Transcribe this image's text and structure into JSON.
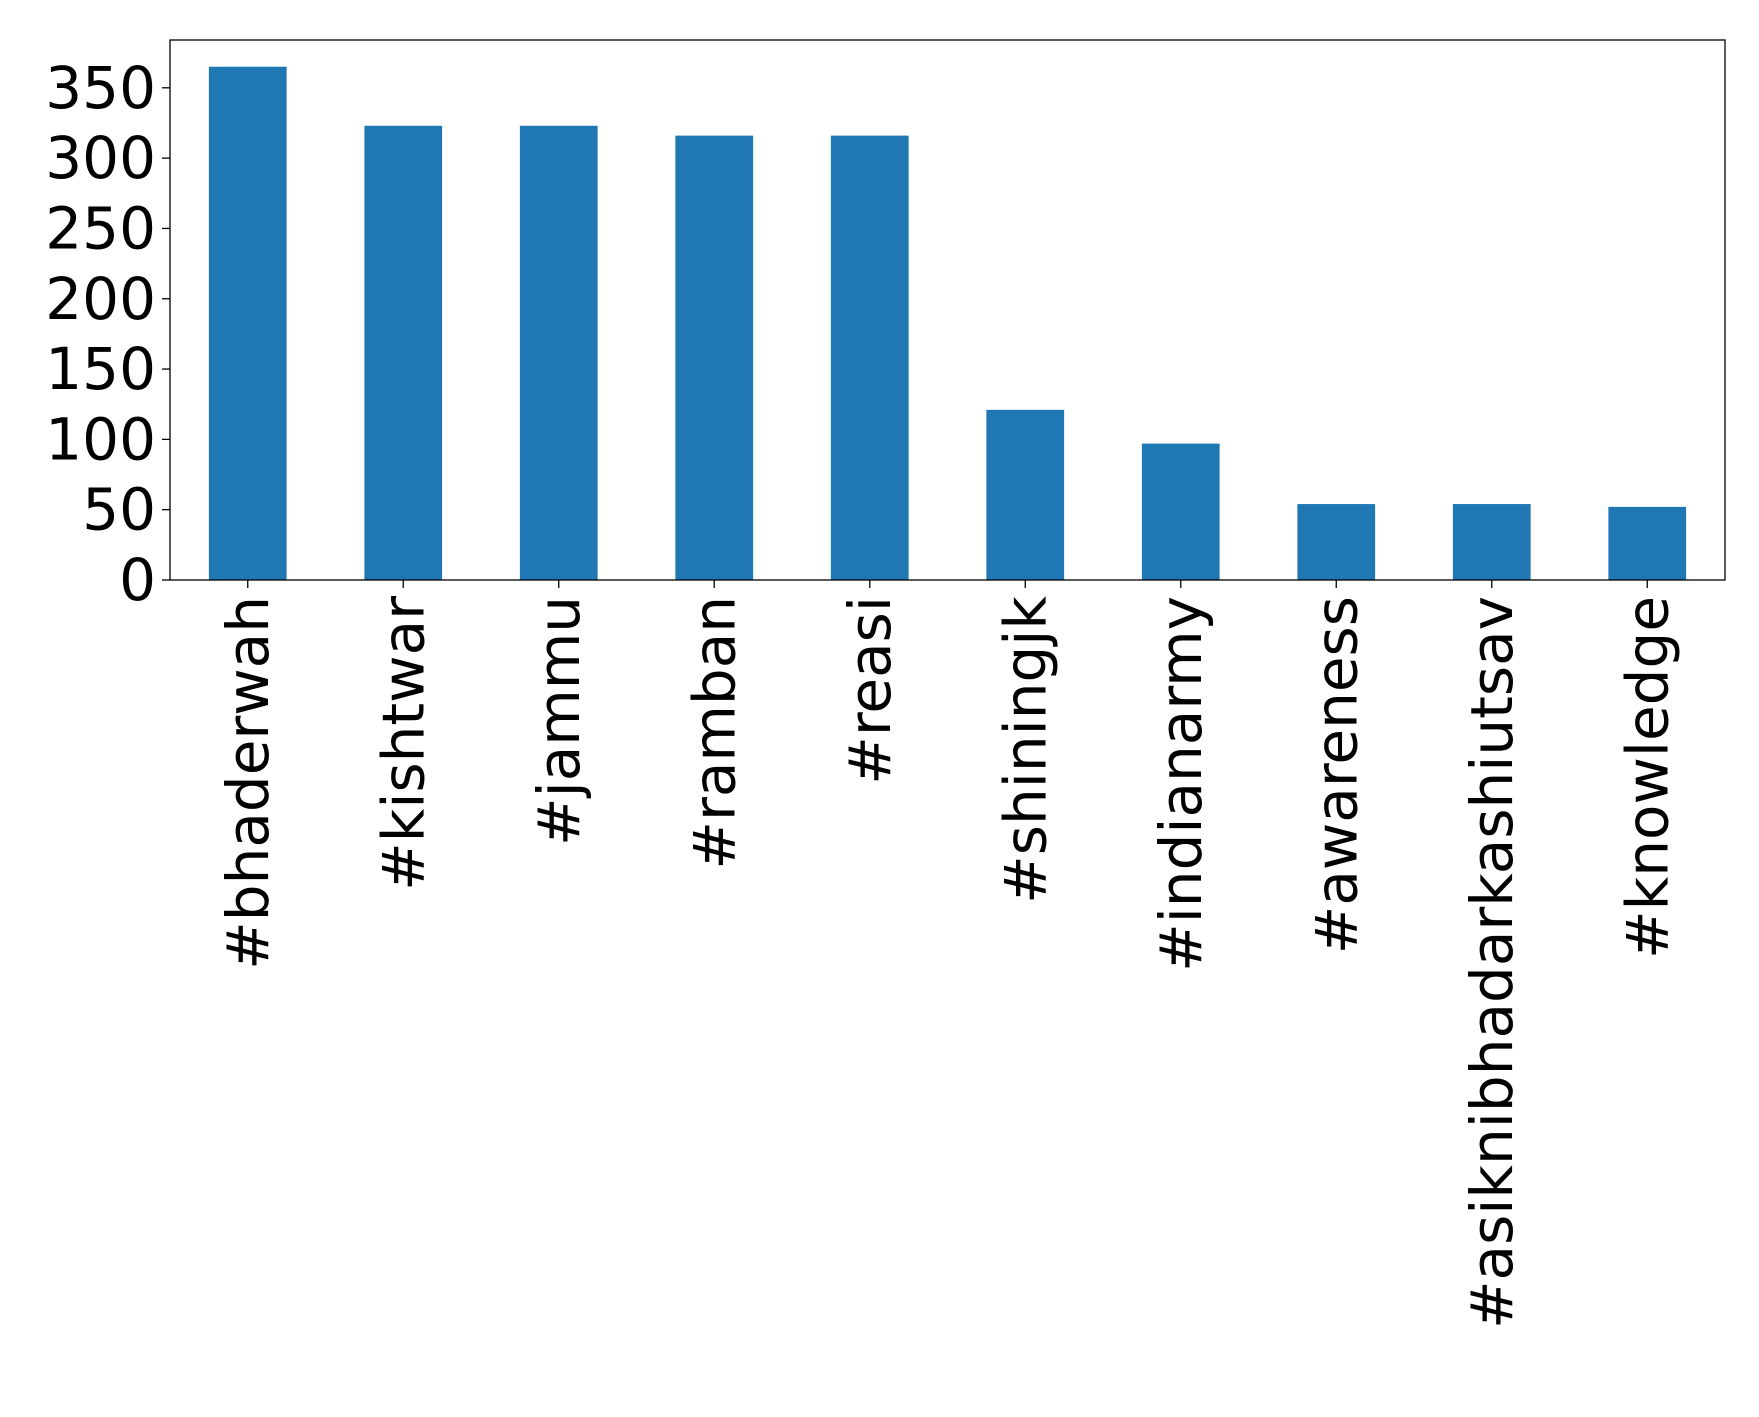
{
  "chart_data": {
    "type": "bar",
    "categories": [
      "#bhaderwah",
      "#kishtwar",
      "#jammu",
      "#ramban",
      "#reasi",
      "#shiningjk",
      "#indianarmy",
      "#awareness",
      "#asiknibhadarkashiutsav",
      "#knowledge"
    ],
    "values": [
      365,
      323,
      323,
      316,
      316,
      121,
      97,
      54,
      54,
      52
    ],
    "title": "",
    "xlabel": "",
    "ylabel": "",
    "ylim": [
      0,
      384
    ],
    "yticks": [
      0,
      50,
      100,
      150,
      200,
      250,
      300,
      350
    ],
    "grid": false,
    "legend": "none",
    "bar_color": "#1f77b4"
  }
}
